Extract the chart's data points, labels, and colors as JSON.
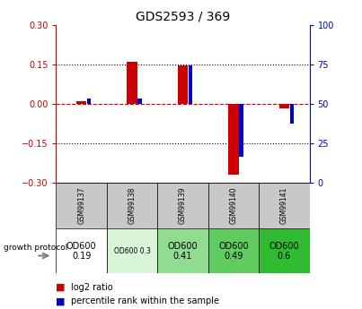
{
  "title": "GDS2593 / 369",
  "samples": [
    "GSM99137",
    "GSM99138",
    "GSM99139",
    "GSM99140",
    "GSM99141"
  ],
  "log2_ratios": [
    0.01,
    0.16,
    0.145,
    -0.27,
    -0.02
  ],
  "percentile_ranks": [
    53,
    53,
    74,
    16,
    37
  ],
  "growth_labels": [
    "OD600\n0.19",
    "OD600 0.3",
    "OD600\n0.41",
    "OD600\n0.49",
    "OD600\n0.6"
  ],
  "growth_colors": [
    "#ffffff",
    "#d8f5d8",
    "#90dc90",
    "#60cc60",
    "#30bb30"
  ],
  "ylim": [
    -0.3,
    0.3
  ],
  "yticks_left": [
    -0.3,
    -0.15,
    0.0,
    0.15,
    0.3
  ],
  "yticks_right": [
    0,
    25,
    50,
    75,
    100
  ],
  "red_color": "#cc0000",
  "blue_color": "#0000cc",
  "gray_box": "#c8c8c8"
}
